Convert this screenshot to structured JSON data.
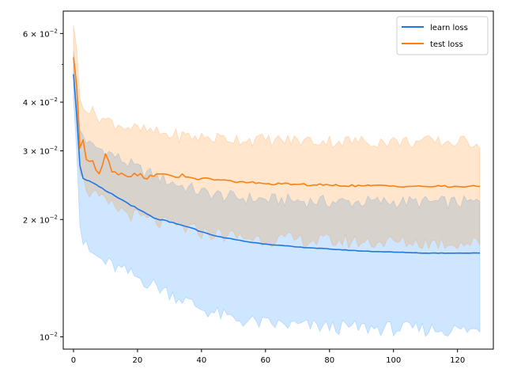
{
  "chart_data": {
    "type": "line",
    "title": "",
    "xlabel": "",
    "ylabel": "",
    "xlim": [
      -3.2,
      131.2
    ],
    "ylim": [
      0.0093,
      0.0685
    ],
    "yscale": "log",
    "grid": false,
    "legend_position": "top-right",
    "x_ticks": [
      {
        "value": 0,
        "label": "0"
      },
      {
        "value": 20,
        "label": "20"
      },
      {
        "value": 40,
        "label": "40"
      },
      {
        "value": 60,
        "label": "60"
      },
      {
        "value": 80,
        "label": "80"
      },
      {
        "value": 100,
        "label": "100"
      },
      {
        "value": 120,
        "label": "120"
      }
    ],
    "y_ticks": [
      {
        "value": 0.01,
        "label": "10",
        "exp": "−2"
      },
      {
        "value": 0.02,
        "label": "2 × 10",
        "exp": "−2"
      },
      {
        "value": 0.03,
        "label": "3 × 10",
        "exp": "−2"
      },
      {
        "value": 0.04,
        "label": "4 × 10",
        "exp": "−2"
      },
      {
        "value": 0.06,
        "label": "6 × 10",
        "exp": "−2"
      }
    ],
    "y_minor_ticks": [
      0.05
    ],
    "series": [
      {
        "name": "learn loss",
        "color": "#1f77e4",
        "band_color": "#1f8fff",
        "keypoints": [
          [
            0,
            0.0472
          ],
          [
            1,
            0.037
          ],
          [
            2,
            0.0275
          ],
          [
            3,
            0.0255
          ],
          [
            5,
            0.0251
          ],
          [
            10,
            0.0237
          ],
          [
            15,
            0.0225
          ],
          [
            20,
            0.0213
          ],
          [
            25,
            0.0202
          ],
          [
            30,
            0.0197
          ],
          [
            35,
            0.0192
          ],
          [
            40,
            0.0186
          ],
          [
            45,
            0.0181
          ],
          [
            50,
            0.0178
          ],
          [
            55,
            0.0175
          ],
          [
            60,
            0.0173
          ],
          [
            70,
            0.017
          ],
          [
            80,
            0.0168
          ],
          [
            90,
            0.0166
          ],
          [
            100,
            0.0165
          ],
          [
            110,
            0.0164
          ],
          [
            120,
            0.0164
          ],
          [
            127,
            0.0164
          ]
        ],
        "band_upper": [
          [
            0,
            0.054
          ],
          [
            1,
            0.045
          ],
          [
            2,
            0.034
          ],
          [
            5,
            0.031
          ],
          [
            10,
            0.03
          ],
          [
            20,
            0.027
          ],
          [
            30,
            0.025
          ],
          [
            40,
            0.0235
          ],
          [
            50,
            0.0228
          ],
          [
            60,
            0.0225
          ],
          [
            80,
            0.0222
          ],
          [
            100,
            0.0222
          ],
          [
            127,
            0.0221
          ]
        ],
        "band_lower": [
          [
            0,
            0.041
          ],
          [
            1,
            0.03
          ],
          [
            2,
            0.0193
          ],
          [
            3,
            0.0175
          ],
          [
            5,
            0.0165
          ],
          [
            10,
            0.0155
          ],
          [
            20,
            0.0142
          ],
          [
            30,
            0.013
          ],
          [
            40,
            0.0118
          ],
          [
            50,
            0.0111
          ],
          [
            60,
            0.0108
          ],
          [
            80,
            0.0106
          ],
          [
            100,
            0.0105
          ],
          [
            127,
            0.0104
          ]
        ]
      },
      {
        "name": "test loss",
        "color": "#ff7f0e",
        "band_color": "#ff8c1a",
        "keypoints": [
          [
            0,
            0.0521
          ],
          [
            1,
            0.044
          ],
          [
            2,
            0.0305
          ],
          [
            3,
            0.032
          ],
          [
            4,
            0.0285
          ],
          [
            6,
            0.0283
          ],
          [
            8,
            0.0262
          ],
          [
            10,
            0.0295
          ],
          [
            12,
            0.0265
          ],
          [
            15,
            0.0263
          ],
          [
            20,
            0.0259
          ],
          [
            25,
            0.0258
          ],
          [
            30,
            0.026
          ],
          [
            35,
            0.0257
          ],
          [
            40,
            0.0255
          ],
          [
            45,
            0.0253
          ],
          [
            50,
            0.025
          ],
          [
            55,
            0.0249
          ],
          [
            60,
            0.0247
          ],
          [
            70,
            0.0246
          ],
          [
            80,
            0.0245
          ],
          [
            90,
            0.0244
          ],
          [
            100,
            0.0244
          ],
          [
            110,
            0.0243
          ],
          [
            120,
            0.0243
          ],
          [
            127,
            0.0243
          ]
        ],
        "band_upper": [
          [
            0,
            0.063
          ],
          [
            1,
            0.055
          ],
          [
            2,
            0.041
          ],
          [
            5,
            0.038
          ],
          [
            10,
            0.036
          ],
          [
            20,
            0.034
          ],
          [
            30,
            0.033
          ],
          [
            40,
            0.0325
          ],
          [
            60,
            0.032
          ],
          [
            80,
            0.0318
          ],
          [
            100,
            0.0317
          ],
          [
            127,
            0.0316
          ]
        ],
        "band_lower": [
          [
            0,
            0.046
          ],
          [
            1,
            0.038
          ],
          [
            2,
            0.026
          ],
          [
            5,
            0.0235
          ],
          [
            10,
            0.022
          ],
          [
            20,
            0.0203
          ],
          [
            30,
            0.0193
          ],
          [
            40,
            0.0186
          ],
          [
            50,
            0.0181
          ],
          [
            60,
            0.0178
          ],
          [
            80,
            0.0176
          ],
          [
            100,
            0.0175
          ],
          [
            127,
            0.0174
          ]
        ]
      }
    ]
  }
}
